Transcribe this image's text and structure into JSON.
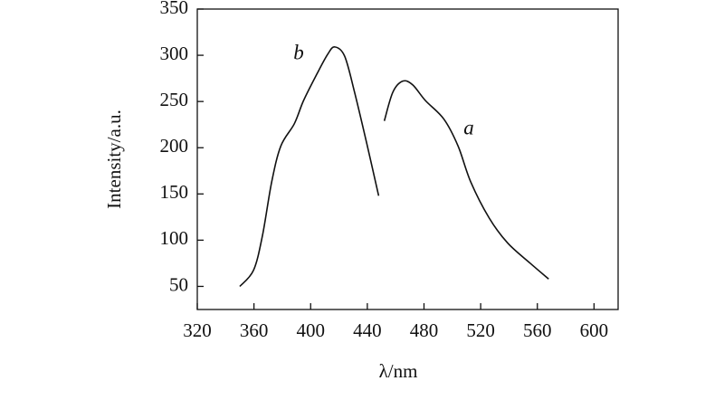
{
  "chart_data": {
    "type": "line",
    "xlabel": "λ/nm",
    "ylabel": "Intensity/a.u.",
    "xlim": [
      320,
      617
    ],
    "ylim": [
      25,
      350
    ],
    "xticks": [
      320,
      360,
      400,
      440,
      480,
      520,
      560,
      600
    ],
    "yticks": [
      50,
      100,
      150,
      200,
      250,
      300,
      350
    ],
    "series": [
      {
        "name": "a",
        "color": "#111111",
        "x": [
          452,
          458,
          465,
          472,
          481,
          494,
          504,
          513,
          526,
          539,
          555,
          568
        ],
        "values": [
          229,
          260,
          272,
          268,
          251,
          231,
          202,
          163,
          124,
          97,
          75,
          58
        ]
      },
      {
        "name": "b",
        "color": "#111111",
        "x": [
          350,
          359.7,
          366,
          372.5,
          379,
          388.5,
          395,
          404.5,
          412,
          417,
          424,
          431,
          440,
          448
        ],
        "values": [
          50,
          67.5,
          105,
          163,
          202,
          226,
          251,
          280,
          301,
          309,
          299,
          260,
          202,
          148
        ]
      }
    ]
  }
}
